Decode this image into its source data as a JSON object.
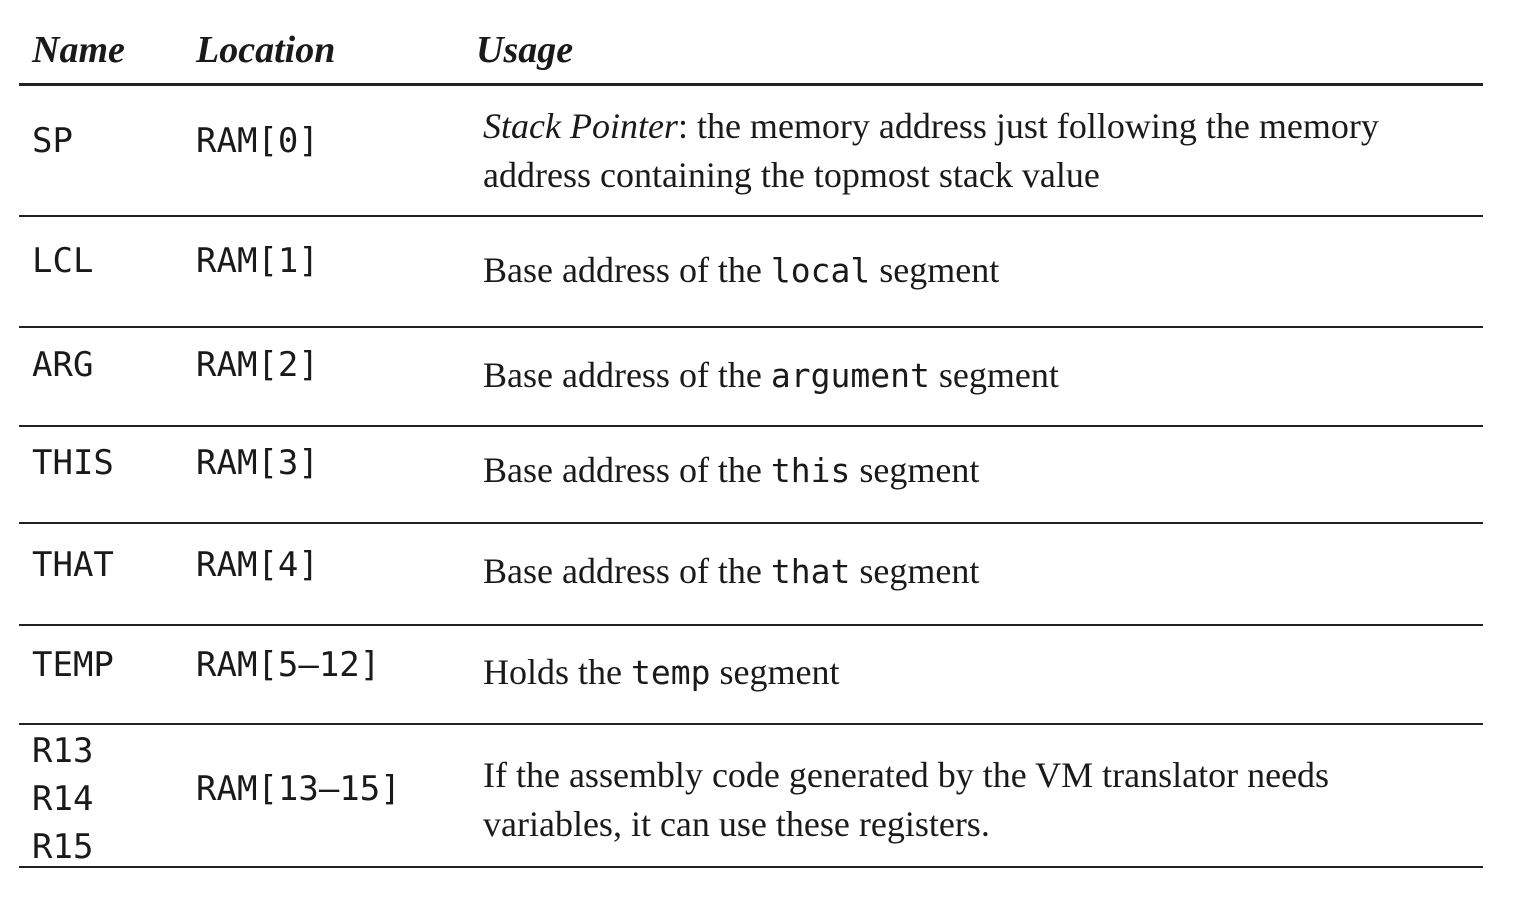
{
  "headers": {
    "name": "Name",
    "location": "Location",
    "usage": "Usage"
  },
  "rows": [
    {
      "name": "SP",
      "location": "RAM[0]",
      "usage_term": "Stack Pointer",
      "usage_text": ": the memory address just following the memory address containing the topmost stack value"
    },
    {
      "name": "LCL",
      "location": "RAM[1]",
      "usage_pre": "Base address of the ",
      "usage_code": "local",
      "usage_post": " segment"
    },
    {
      "name": "ARG",
      "location": "RAM[2]",
      "usage_pre": "Base address of the ",
      "usage_code": "argument",
      "usage_post": " segment"
    },
    {
      "name": "THIS",
      "location": "RAM[3]",
      "usage_pre": "Base address of the ",
      "usage_code": "this",
      "usage_post": " segment"
    },
    {
      "name": "THAT",
      "location": "RAM[4]",
      "usage_pre": "Base address of the ",
      "usage_code": "that",
      "usage_post": " segment"
    },
    {
      "name": "TEMP",
      "location": "RAM[5–12]",
      "usage_pre": "Holds the ",
      "usage_code": "temp",
      "usage_post": " segment"
    },
    {
      "names": [
        "R13",
        "R14",
        "R15"
      ],
      "location": "RAM[13–15]",
      "usage_text": "If the assembly code generated by the VM translator needs variables, it can use these registers."
    }
  ]
}
